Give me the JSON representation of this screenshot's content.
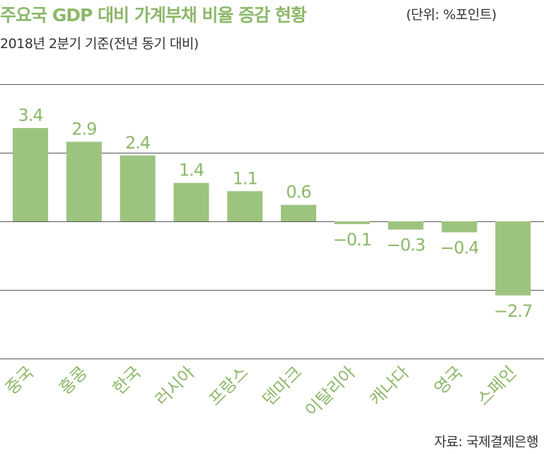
{
  "chart_data": {
    "type": "bar",
    "title": "주요국 GDP 대비 가계부채 비율 증감 현황",
    "unit_note": "(단위: %포인트)",
    "subtitle": "2018년 2분기 기준(전년 동기 대비)",
    "source": "자료: 국제결제은행",
    "categories": [
      "중국",
      "홍콩",
      "한국",
      "러시아",
      "프랑스",
      "덴마크",
      "이탈리아",
      "캐나다",
      "영국",
      "스페인"
    ],
    "values": [
      3.4,
      2.9,
      2.4,
      1.4,
      1.1,
      0.6,
      -0.1,
      -0.3,
      -0.4,
      -2.7
    ],
    "value_labels": [
      "3.4",
      "2.9",
      "2.4",
      "1.4",
      "1.1",
      "0.6",
      "−0.1",
      "−0.3",
      "−0.4",
      "−2.7"
    ],
    "ylim": [
      -3.5,
      4
    ],
    "grid": true,
    "bar_color": "#9dc47f",
    "label_color": "#8db86a",
    "grid_color": "#555555"
  }
}
